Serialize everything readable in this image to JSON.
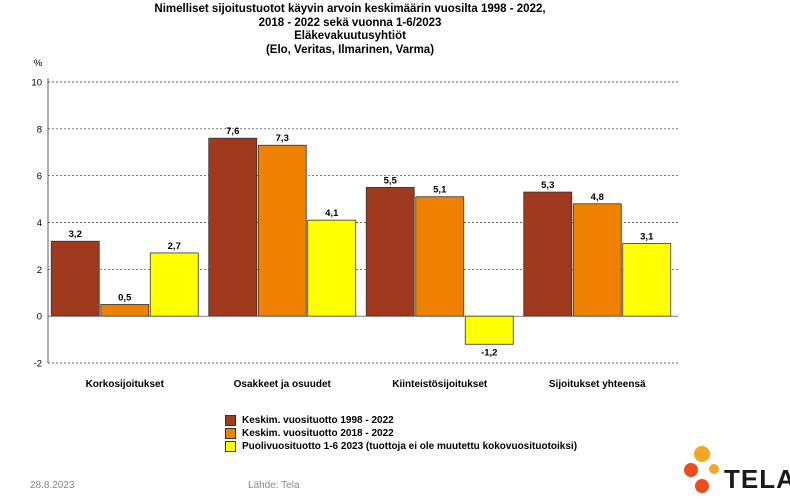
{
  "chart_data": {
    "type": "bar",
    "title_lines": [
      "Nimelliset sijoitustuotot käyvin arvoin keskimäärin vuosilta 1998 - 2022,",
      "2018 - 2022 sekä vuonna 1-6/2023",
      "Eläkevakuutusyhtiöt",
      "(Elo, Veritas, Ilmarinen, Varma)"
    ],
    "ylabel": "%",
    "ylim": [
      -2,
      10
    ],
    "yticks": [
      -2,
      0,
      2,
      4,
      6,
      8,
      10
    ],
    "grid": true,
    "categories": [
      "Korkosijoitukset",
      "Osakkeet ja osuudet",
      "Kiinteistösijoitukset",
      "Sijoitukset yhteensä"
    ],
    "series": [
      {
        "name": "Keskim. vuosituotto 1998 - 2022",
        "color": "#a03a1e",
        "values": [
          3.2,
          7.6,
          5.5,
          5.3
        ],
        "labels": [
          "3,2",
          "7,6",
          "5,5",
          "5,3"
        ]
      },
      {
        "name": "Keskim. vuosituotto 2018 - 2022",
        "color": "#ee8200",
        "values": [
          0.5,
          7.3,
          5.1,
          4.8
        ],
        "labels": [
          "0,5",
          "7,3",
          "5,1",
          "4,8"
        ]
      },
      {
        "name": "Puolivuosituotto 1-6 2023 (tuottoja ei ole muutettu kokovuosituotoiksi)",
        "color": "#ffff00",
        "values": [
          2.7,
          4.1,
          -1.2,
          3.1
        ],
        "labels": [
          "2,7",
          "4,1",
          "-1,2",
          "3,1"
        ]
      }
    ],
    "legend_position": "bottom"
  },
  "footer": {
    "date": "28.8.2023",
    "source": "Lähde: Tela"
  },
  "logo": {
    "text": "TELA",
    "colors": [
      "#f5a623",
      "#e94e1b"
    ]
  }
}
